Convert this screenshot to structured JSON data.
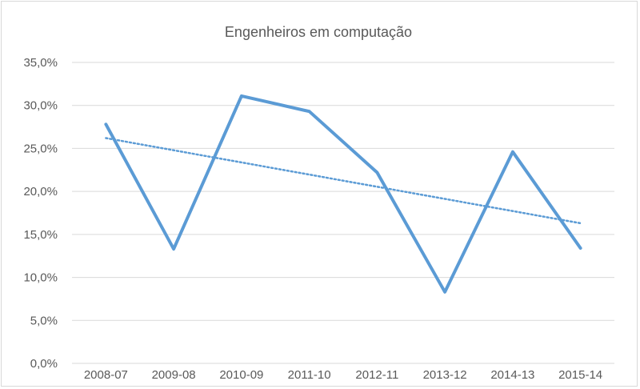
{
  "chart_data": {
    "type": "line",
    "title": "Engenheiros em computação",
    "xlabel": "",
    "ylabel": "",
    "categories": [
      "2008-07",
      "2009-08",
      "2010-09",
      "2011-10",
      "2012-11",
      "2013-12",
      "2014-13",
      "2015-14"
    ],
    "series": [
      {
        "values": [
          27.8,
          13.3,
          31.1,
          29.3,
          22.2,
          8.3,
          24.6,
          13.4
        ],
        "color": "#5b9bd5",
        "style": "solid"
      }
    ],
    "trendline": {
      "kind": "linear",
      "start": 26.2,
      "end": 16.3,
      "color": "#5b9bd5",
      "style": "dotted"
    },
    "ylim": [
      0,
      35
    ],
    "yticks": [
      "0,0%",
      "5,0%",
      "10,0%",
      "15,0%",
      "20,0%",
      "25,0%",
      "30,0%",
      "35,0%"
    ],
    "grid": true,
    "legend": "none"
  }
}
